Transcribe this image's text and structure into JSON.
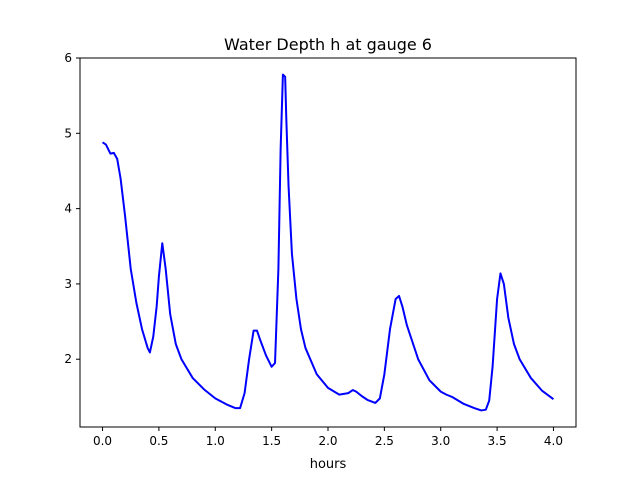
{
  "chart_data": {
    "type": "line",
    "title": "Water Depth h at gauge 6",
    "xlabel": "hours",
    "ylabel": "",
    "xlim": [
      -0.2,
      4.2
    ],
    "ylim": [
      1.1,
      6.0
    ],
    "x_ticks": [
      0.0,
      0.5,
      1.0,
      1.5,
      2.0,
      2.5,
      3.0,
      3.5,
      4.0
    ],
    "x_tick_labels": [
      "0.0",
      "0.5",
      "1.0",
      "1.5",
      "2.0",
      "2.5",
      "3.0",
      "3.5",
      "4.0"
    ],
    "y_ticks": [
      2,
      3,
      4,
      5,
      6
    ],
    "y_tick_labels": [
      "2",
      "3",
      "4",
      "5",
      "6"
    ],
    "grid": false,
    "legend": "none",
    "series": [
      {
        "color": "#0000ff",
        "x": [
          0.0,
          0.03,
          0.07,
          0.1,
          0.13,
          0.16,
          0.2,
          0.25,
          0.3,
          0.35,
          0.4,
          0.42,
          0.45,
          0.48,
          0.5,
          0.53,
          0.56,
          0.6,
          0.65,
          0.7,
          0.8,
          0.9,
          1.0,
          1.1,
          1.18,
          1.22,
          1.26,
          1.3,
          1.34,
          1.37,
          1.4,
          1.45,
          1.5,
          1.53,
          1.56,
          1.58,
          1.6,
          1.62,
          1.63,
          1.65,
          1.68,
          1.72,
          1.76,
          1.8,
          1.9,
          2.0,
          2.1,
          2.18,
          2.22,
          2.25,
          2.3,
          2.35,
          2.42,
          2.46,
          2.5,
          2.55,
          2.6,
          2.63,
          2.66,
          2.7,
          2.8,
          2.9,
          3.0,
          3.05,
          3.1,
          3.2,
          3.3,
          3.36,
          3.4,
          3.43,
          3.46,
          3.5,
          3.53,
          3.56,
          3.6,
          3.65,
          3.7,
          3.8,
          3.9,
          4.0
        ],
        "y": [
          4.88,
          4.85,
          4.73,
          4.74,
          4.66,
          4.4,
          3.9,
          3.2,
          2.75,
          2.4,
          2.15,
          2.09,
          2.3,
          2.7,
          3.1,
          3.54,
          3.2,
          2.6,
          2.2,
          2.0,
          1.75,
          1.6,
          1.48,
          1.4,
          1.35,
          1.35,
          1.55,
          2.0,
          2.38,
          2.38,
          2.25,
          2.05,
          1.9,
          1.95,
          3.2,
          4.8,
          5.78,
          5.75,
          5.2,
          4.3,
          3.4,
          2.8,
          2.4,
          2.15,
          1.8,
          1.62,
          1.53,
          1.55,
          1.59,
          1.57,
          1.51,
          1.46,
          1.42,
          1.48,
          1.8,
          2.4,
          2.8,
          2.84,
          2.7,
          2.45,
          2.0,
          1.72,
          1.57,
          1.53,
          1.5,
          1.41,
          1.35,
          1.32,
          1.33,
          1.45,
          1.9,
          2.8,
          3.14,
          3.0,
          2.55,
          2.2,
          2.0,
          1.75,
          1.58,
          1.47
        ]
      }
    ]
  }
}
